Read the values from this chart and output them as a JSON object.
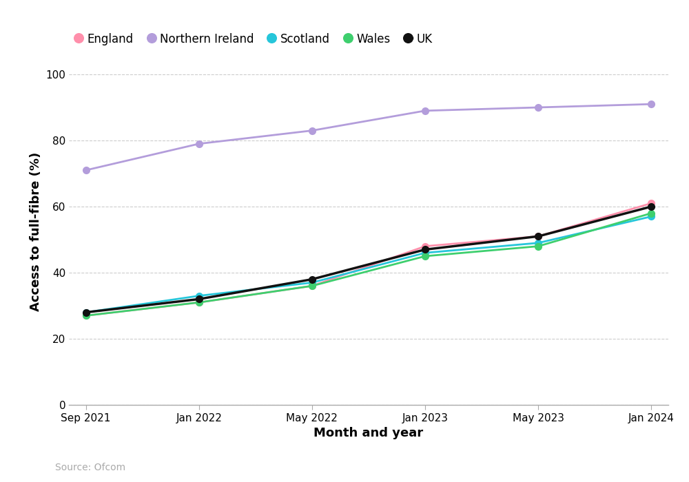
{
  "x_labels": [
    "Sep 2021",
    "Jan 2022",
    "May 2022",
    "Jan 2023",
    "May 2023",
    "Jan 2024"
  ],
  "x_positions": [
    0,
    1,
    2,
    3,
    4,
    5
  ],
  "series": {
    "England": {
      "values": [
        27,
        31,
        36,
        48,
        51,
        61
      ],
      "color": "#FF8FAB",
      "zorder": 3,
      "marker": "o",
      "linewidth": 2.0
    },
    "Northern Ireland": {
      "values": [
        71,
        79,
        83,
        89,
        90,
        91
      ],
      "color": "#B39DDB",
      "zorder": 3,
      "marker": "o",
      "linewidth": 2.0
    },
    "Scotland": {
      "values": [
        28,
        33,
        37,
        46,
        49,
        57
      ],
      "color": "#26C6DA",
      "zorder": 3,
      "marker": "o",
      "linewidth": 2.0
    },
    "Wales": {
      "values": [
        27,
        31,
        36,
        45,
        48,
        58
      ],
      "color": "#3ECF6E",
      "zorder": 3,
      "marker": "o",
      "linewidth": 2.0
    },
    "UK": {
      "values": [
        28,
        32,
        38,
        47,
        51,
        60
      ],
      "color": "#111111",
      "zorder": 4,
      "marker": "o",
      "linewidth": 2.5
    }
  },
  "legend_order": [
    "England",
    "Northern Ireland",
    "Scotland",
    "Wales",
    "UK"
  ],
  "ylabel": "Access to full-fibre (%)",
  "xlabel": "Month and year",
  "source": "Source: Ofcom",
  "ylim": [
    0,
    105
  ],
  "yticks": [
    0,
    20,
    40,
    60,
    80,
    100
  ],
  "background_color": "#FFFFFF",
  "grid_color": "#CCCCCC",
  "marker_size": 7,
  "label_fontsize": 13,
  "tick_fontsize": 11,
  "legend_fontsize": 12,
  "source_fontsize": 10
}
